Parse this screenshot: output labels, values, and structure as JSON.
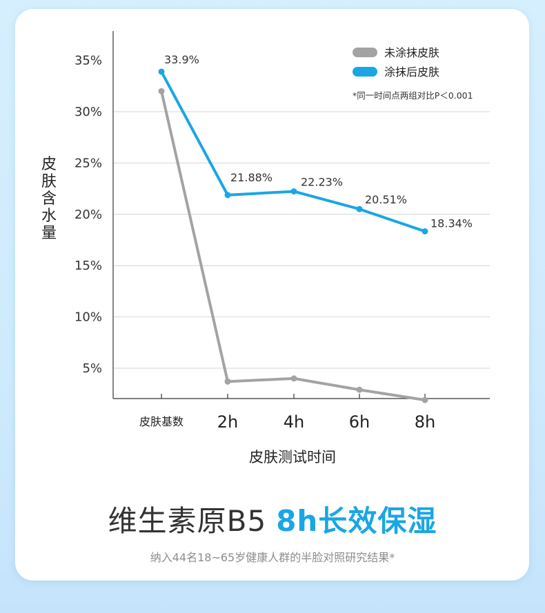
{
  "chart_data": {
    "type": "line",
    "ylabel": "皮肤含水量",
    "xlabel": "皮肤测试时间",
    "categories": [
      "皮肤基数",
      "2h",
      "4h",
      "6h",
      "8h"
    ],
    "y_ticks": [
      "5%",
      "10%",
      "15%",
      "20%",
      "25%",
      "30%",
      "35%"
    ],
    "y_tick_values": [
      5,
      10,
      15,
      20,
      25,
      30,
      35
    ],
    "ylim": [
      1.9,
      37
    ],
    "grid": "horizontal",
    "legend_position": "top-right",
    "note": "*同一时间点两组对比P＜0.001",
    "series": [
      {
        "name": "未涂抹皮肤",
        "color": "#a3a3a3",
        "values": [
          32.0,
          3.7,
          4.0,
          2.9,
          1.9
        ],
        "labels": [
          "",
          "",
          "",
          "",
          ""
        ]
      },
      {
        "name": "涂抹后皮肤",
        "color": "#1aa6e4",
        "values": [
          33.9,
          21.88,
          22.23,
          20.51,
          18.34
        ],
        "labels": [
          "33.9%",
          "21.88%",
          "22.23%",
          "20.51%",
          "18.34%"
        ]
      }
    ]
  },
  "headline": {
    "plain": "维生素原B5",
    "accent": "8h长效保湿"
  },
  "footnote": "纳入44名18~65岁健康人群的半脸对照研究结果*"
}
